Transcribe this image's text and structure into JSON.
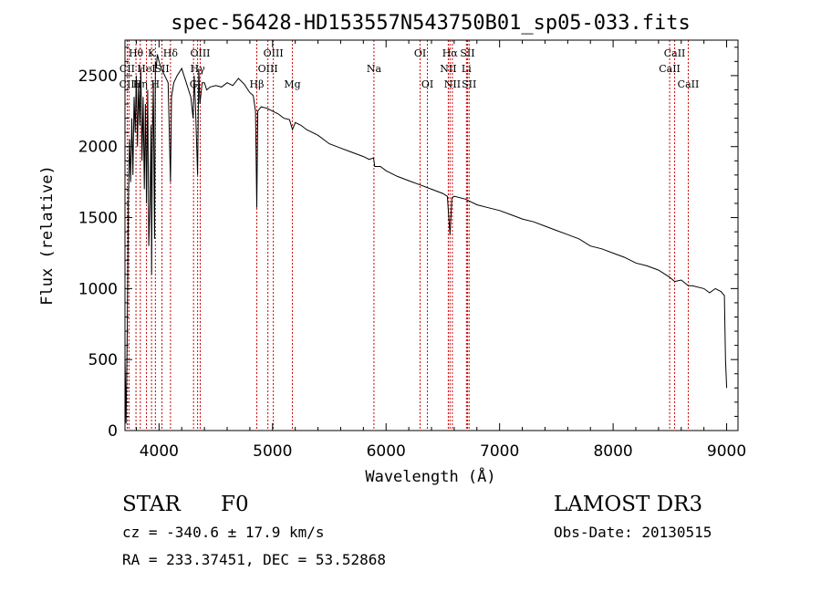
{
  "chart_data": {
    "type": "line",
    "title": "spec-56428-HD153557N543750B01_sp05-033.fits",
    "xlabel": "Wavelength (Å)",
    "ylabel": "Flux (relative)",
    "xlim": [
      3700,
      9100
    ],
    "ylim": [
      0,
      2750
    ],
    "xticks": [
      4000,
      5000,
      6000,
      7000,
      8000,
      9000
    ],
    "yticks": [
      0,
      500,
      1000,
      1500,
      2000,
      2500
    ],
    "series": [
      {
        "name": "spectrum",
        "x": [
          3700,
          3710,
          3720,
          3730,
          3740,
          3750,
          3760,
          3770,
          3780,
          3790,
          3800,
          3810,
          3820,
          3830,
          3840,
          3850,
          3860,
          3870,
          3880,
          3890,
          3900,
          3910,
          3920,
          3930,
          3935,
          3940,
          3950,
          3960,
          3968,
          3975,
          3985,
          4000,
          4020,
          4050,
          4080,
          4101,
          4110,
          4130,
          4160,
          4200,
          4240,
          4280,
          4300,
          4310,
          4320,
          4340,
          4350,
          4360,
          4380,
          4400,
          4420,
          4450,
          4500,
          4550,
          4600,
          4650,
          4700,
          4750,
          4800,
          4830,
          4850,
          4861,
          4870,
          4900,
          4950,
          5000,
          5050,
          5100,
          5150,
          5175,
          5200,
          5250,
          5300,
          5400,
          5500,
          5600,
          5700,
          5800,
          5850,
          5890,
          5900,
          5950,
          6000,
          6100,
          6200,
          6300,
          6400,
          6500,
          6540,
          6563,
          6580,
          6600,
          6700,
          6800,
          6900,
          7000,
          7100,
          7200,
          7300,
          7400,
          7500,
          7600,
          7700,
          7800,
          7900,
          8000,
          8100,
          8200,
          8300,
          8400,
          8498,
          8542,
          8600,
          8662,
          8700,
          8800,
          8850,
          8900,
          8950,
          8980,
          8990,
          9000
        ],
        "y": [
          520,
          50,
          700,
          1600,
          2050,
          1750,
          2200,
          1800,
          2350,
          2100,
          2500,
          2000,
          2450,
          2150,
          2550,
          1900,
          2350,
          1700,
          2300,
          1600,
          2400,
          1300,
          1600,
          2150,
          1100,
          1950,
          2450,
          1350,
          2600,
          2550,
          2650,
          2600,
          2550,
          2500,
          2450,
          1750,
          2350,
          2450,
          2500,
          2550,
          2450,
          2350,
          2200,
          2500,
          2300,
          1800,
          2550,
          2300,
          2450,
          2450,
          2400,
          2420,
          2430,
          2420,
          2450,
          2430,
          2480,
          2440,
          2380,
          2360,
          2250,
          1570,
          2250,
          2280,
          2270,
          2250,
          2230,
          2200,
          2190,
          2120,
          2170,
          2150,
          2120,
          2080,
          2020,
          1990,
          1960,
          1930,
          1910,
          1920,
          1860,
          1860,
          1830,
          1790,
          1760,
          1730,
          1700,
          1670,
          1650,
          1380,
          1640,
          1650,
          1630,
          1590,
          1570,
          1550,
          1520,
          1490,
          1470,
          1440,
          1410,
          1380,
          1350,
          1300,
          1280,
          1250,
          1220,
          1180,
          1160,
          1130,
          1080,
          1050,
          1060,
          1020,
          1020,
          1000,
          970,
          1000,
          980,
          950,
          500,
          300
        ]
      }
    ],
    "lines": [
      {
        "name": "CII",
        "wl": 3720,
        "label_row": 1,
        "label": "CII"
      },
      {
        "name": "CIII",
        "wl": 3735,
        "label_row": 2,
        "label": "CIII"
      },
      {
        "name": "Hθ",
        "wl": 3797,
        "label_row": 0,
        "label": "Hθ"
      },
      {
        "name": "Hη",
        "wl": 3835,
        "label_row": 2,
        "label": "Hη"
      },
      {
        "name": "HeI",
        "wl": 3889,
        "label_row": 1,
        "label": "HeI"
      },
      {
        "name": "K",
        "wl": 3934,
        "label_row": 0,
        "label": "K"
      },
      {
        "name": "H",
        "wl": 3968,
        "label_row": 2,
        "label": "H"
      },
      {
        "name": "SII",
        "wl": 4026,
        "label_row": 1,
        "label": "SII"
      },
      {
        "name": "Hδ",
        "wl": 4101,
        "label_row": 0,
        "label": "Hδ"
      },
      {
        "name": "G",
        "wl": 4304,
        "label_row": 2,
        "label": "G"
      },
      {
        "name": "Hγ",
        "wl": 4340,
        "label_row": 1,
        "label": "Hγ"
      },
      {
        "name": "OIII",
        "wl": 4363,
        "label_row": 0,
        "label": "OIII"
      },
      {
        "name": "Hβ",
        "wl": 4861,
        "label_row": 2,
        "label": "Hβ"
      },
      {
        "name": "OIII",
        "wl": 4959,
        "label_row": 1,
        "label": "OIII"
      },
      {
        "name": "OIII",
        "wl": 5007,
        "label_row": 0,
        "label": "OIII"
      },
      {
        "name": "Mg",
        "wl": 5175,
        "label_row": 2,
        "label": "Mg"
      },
      {
        "name": "Na",
        "wl": 5893,
        "label_row": 1,
        "label": "Na"
      },
      {
        "name": "OI",
        "wl": 6300,
        "label_row": 0,
        "label": "OI"
      },
      {
        "name": "OI",
        "wl": 6364,
        "label_row": 2,
        "label": "OI"
      },
      {
        "name": "NII",
        "wl": 6548,
        "label_row": 1,
        "label": "NII"
      },
      {
        "name": "Hα",
        "wl": 6563,
        "label_row": 0,
        "label": "Hα"
      },
      {
        "name": "NII",
        "wl": 6584,
        "label_row": 2,
        "label": "NII"
      },
      {
        "name": "Li",
        "wl": 6708,
        "label_row": 1,
        "label": "Li"
      },
      {
        "name": "SII",
        "wl": 6717,
        "label_row": 0,
        "label": "SII"
      },
      {
        "name": "SII",
        "wl": 6731,
        "label_row": 2,
        "label": "SII"
      },
      {
        "name": "CaII",
        "wl": 8498,
        "label_row": 1,
        "label": "CaII"
      },
      {
        "name": "CaII",
        "wl": 8542,
        "label_row": 0,
        "label": "CaII"
      },
      {
        "name": "CaII",
        "wl": 8662,
        "label_row": 2,
        "label": "CaII"
      }
    ],
    "line_color": "#cc0000"
  },
  "info": {
    "class": "STAR",
    "subclass": "F0",
    "survey": "LAMOST DR3",
    "cz": "cz = -340.6 ± 17.9 km/s",
    "obsdate": "Obs-Date: 20130515",
    "radec": "RA = 233.37451, DEC =  53.52868"
  }
}
